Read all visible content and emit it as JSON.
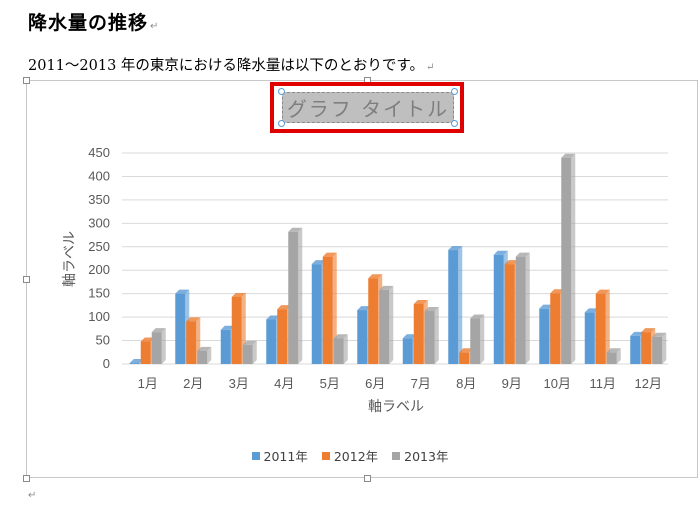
{
  "document": {
    "heading": "降水量の推移",
    "paragraph": "2011～2013 年の東京における降水量は以下のとおりです。",
    "mark_pilcrow": "↵"
  },
  "chart_data": {
    "type": "bar",
    "title": "グラフ タイトル",
    "xlabel": "軸ラベル",
    "ylabel": "軸ラベル",
    "ylim": [
      0,
      450
    ],
    "yticks": [
      0,
      50,
      100,
      150,
      200,
      250,
      300,
      350,
      400,
      450
    ],
    "categories": [
      "1月",
      "2月",
      "3月",
      "4月",
      "5月",
      "6月",
      "7月",
      "8月",
      "9月",
      "10月",
      "11月",
      "12月"
    ],
    "series": [
      {
        "name": "2011年",
        "color": "#5b9bd5",
        "values": [
          2,
          150,
          73,
          95,
          213,
          115,
          55,
          243,
          233,
          118,
          110,
          60
        ]
      },
      {
        "name": "2012年",
        "color": "#ed7d31",
        "values": [
          48,
          91,
          143,
          117,
          229,
          183,
          128,
          25,
          213,
          151,
          150,
          68
        ]
      },
      {
        "name": "2013年",
        "color": "#a5a5a5",
        "values": [
          68,
          28,
          41,
          282,
          55,
          158,
          113,
          97,
          229,
          440,
          25,
          58
        ]
      }
    ],
    "grid": true,
    "legend": "bottom"
  }
}
